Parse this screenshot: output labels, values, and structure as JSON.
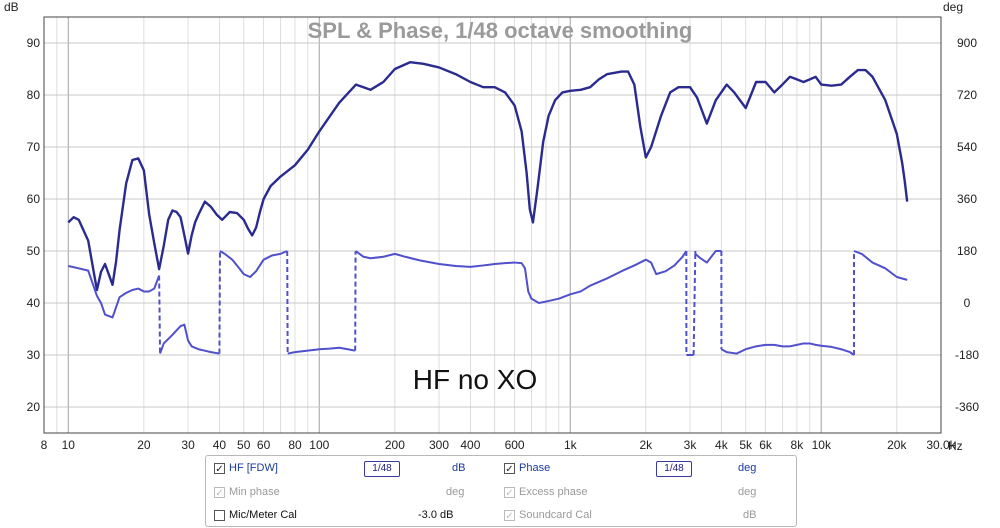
{
  "chart_data": {
    "type": "line",
    "title": "SPL & Phase, 1/48 octave smoothing",
    "x_unit": "Hz",
    "left_unit": "dB",
    "right_unit": "deg",
    "xscale": "log",
    "xlim": [
      8,
      30000
    ],
    "ylim": [
      15,
      95
    ],
    "y2lim": [
      -450,
      990
    ],
    "x_ticks": [
      8,
      10,
      20,
      30,
      40,
      50,
      60,
      80,
      100,
      200,
      300,
      400,
      600,
      1000,
      2000,
      3000,
      4000,
      5000,
      6000,
      8000,
      10000,
      20000,
      30000
    ],
    "x_tick_labels": [
      "8",
      "10",
      "20",
      "30",
      "40",
      "50",
      "60",
      "80",
      "100",
      "200",
      "300",
      "400",
      "600",
      "1k",
      "2k",
      "3k",
      "4k",
      "5k",
      "6k",
      "8k",
      "10k",
      "20k",
      "30.0k"
    ],
    "y_ticks": [
      20,
      30,
      40,
      50,
      60,
      70,
      80,
      90
    ],
    "y2_ticks": [
      -360,
      -180,
      0,
      180,
      360,
      540,
      720,
      900
    ],
    "grid": true,
    "annotation": "HF no XO",
    "series": [
      {
        "name": "HF [FDW]",
        "axis": "left",
        "color": "#2b2b8f",
        "x": [
          10,
          10.5,
          11,
          12,
          13,
          13.5,
          14,
          14.5,
          15,
          15.5,
          16,
          17,
          18,
          19,
          20,
          21,
          22,
          23,
          24,
          25,
          26,
          27,
          28,
          29,
          30,
          31,
          32,
          33,
          35,
          37,
          39,
          41,
          44,
          47,
          50,
          52,
          54,
          56,
          58,
          60,
          64,
          70,
          80,
          90,
          100,
          120,
          140,
          160,
          180,
          200,
          230,
          260,
          300,
          350,
          400,
          450,
          500,
          550,
          600,
          640,
          670,
          690,
          710,
          740,
          780,
          820,
          870,
          930,
          1000,
          1100,
          1200,
          1300,
          1400,
          1600,
          1700,
          1800,
          1900,
          2000,
          2100,
          2300,
          2500,
          2700,
          3000,
          3200,
          3500,
          3800,
          4200,
          4500,
          5000,
          5500,
          6000,
          6500,
          7000,
          7500,
          8000,
          8500,
          9000,
          9500,
          10000,
          11000,
          12000,
          13000,
          14000,
          15000,
          16000,
          18000,
          20000,
          21000,
          21500,
          22000
        ],
        "values": [
          55.5,
          56.5,
          56,
          52,
          42.5,
          46,
          47.5,
          45.5,
          43.5,
          48,
          54,
          63,
          67.5,
          67.8,
          65.5,
          57,
          51.5,
          46.5,
          51,
          56,
          57.8,
          57.5,
          56.5,
          53,
          49.5,
          53,
          55.5,
          57,
          59.5,
          58.5,
          57,
          56,
          57.5,
          57.3,
          56,
          54.3,
          53,
          54.5,
          57.5,
          60,
          62.5,
          64.3,
          66.5,
          69.5,
          73,
          78.5,
          82,
          81,
          82.5,
          85,
          86.3,
          86,
          85.3,
          84,
          82.5,
          81.5,
          81.5,
          80.5,
          78,
          73,
          65,
          58,
          55.5,
          62,
          71,
          76,
          79,
          80.5,
          80.8,
          81,
          81.5,
          83,
          84,
          84.5,
          84.5,
          82,
          74,
          68,
          70,
          76,
          80.5,
          81.5,
          81.5,
          79.5,
          74.5,
          79,
          82,
          80.5,
          77.5,
          82.5,
          82.5,
          80.5,
          82,
          83.5,
          83,
          82.5,
          83,
          83.5,
          82,
          81.8,
          82,
          83.5,
          84.8,
          84.8,
          83.5,
          79,
          72.5,
          67,
          63.5,
          59.5
        ]
      },
      {
        "name": "Phase",
        "axis": "right",
        "color": "#5050cc",
        "x": [
          10,
          11,
          12,
          13,
          13.5,
          14,
          15,
          16,
          17,
          18,
          19,
          20,
          21,
          22,
          23,
          23.2,
          24,
          26,
          28,
          29,
          30,
          31,
          32,
          33,
          35,
          37,
          40,
          40.2,
          42,
          45,
          48,
          50,
          53,
          56,
          60,
          65,
          70,
          74.5,
          74.8,
          80,
          90,
          100,
          110,
          120,
          130,
          139,
          139.5,
          150,
          160,
          180,
          200,
          220,
          250,
          300,
          350,
          400,
          450,
          500,
          550,
          600,
          640,
          660,
          680,
          700,
          750,
          800,
          900,
          1000,
          1100,
          1200,
          1400,
          1600,
          1800,
          2000,
          2100,
          2200,
          2400,
          2600,
          2800,
          2900,
          2901,
          3100,
          3150,
          3151,
          3300,
          3500,
          3800,
          4000,
          4001,
          4200,
          4600,
          5000,
          5500,
          6000,
          6500,
          7000,
          7500,
          8000,
          8500,
          9000,
          9500,
          10000,
          11000,
          12000,
          13000,
          13500,
          13501,
          14500,
          16000,
          18000,
          20000,
          22000
        ],
        "values": [
          128,
          120,
          112,
          25,
          0,
          -40,
          -50,
          20,
          35,
          45,
          50,
          40,
          40,
          50,
          95,
          -175,
          -140,
          -110,
          -80,
          -75,
          -130,
          -150,
          -155,
          -160,
          -165,
          -170,
          -175,
          180,
          170,
          150,
          120,
          100,
          90,
          110,
          150,
          165,
          170,
          180,
          -175,
          -170,
          -165,
          -160,
          -158,
          -155,
          -160,
          -165,
          180,
          160,
          155,
          160,
          170,
          160,
          148,
          135,
          128,
          125,
          130,
          135,
          138,
          140,
          138,
          120,
          40,
          15,
          0,
          5,
          15,
          30,
          40,
          60,
          85,
          110,
          130,
          150,
          140,
          100,
          110,
          130,
          160,
          180,
          -180,
          -180,
          180,
          170,
          155,
          140,
          180,
          180,
          -160,
          -170,
          -175,
          -160,
          -150,
          -145,
          -145,
          -150,
          -150,
          -145,
          -140,
          -140,
          -145,
          -148,
          -152,
          -160,
          -170,
          -180,
          180,
          170,
          140,
          120,
          90,
          80
        ]
      }
    ]
  },
  "legend": {
    "rows": [
      {
        "checked": true,
        "label": "HF [FDW]",
        "smoothing": "1/48",
        "unit": "dB",
        "checked2": true,
        "label2": "Phase",
        "smoothing2": "1/48",
        "unit2": "deg"
      },
      {
        "checked": true,
        "label": "Min phase",
        "unit": "deg",
        "checked2": true,
        "label2": "Excess phase",
        "unit2": "deg"
      },
      {
        "checked": false,
        "label": "Mic/Meter Cal",
        "value": "-3.0 dB",
        "checked2": true,
        "label2": "Soundcard Cal",
        "unit2": "dB"
      }
    ]
  }
}
